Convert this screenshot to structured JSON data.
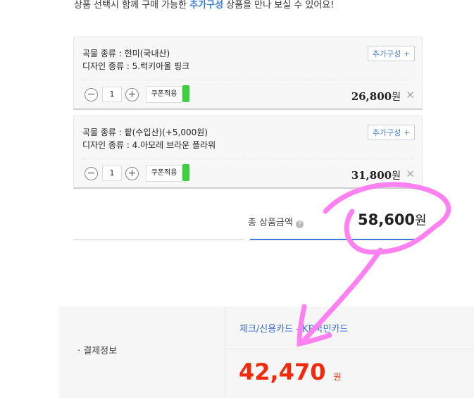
{
  "intro": {
    "before": "상품 선택시 함께 구매 가능한 ",
    "highlight": "추가구성",
    "after": " 상품을 만나 보실 수 있어요!"
  },
  "items": [
    {
      "line1": "곡물 종류 : 현미(국내산)",
      "line2": "디자인 종류 : 5.럭키아울 핑크",
      "add_label": "추가구성 +",
      "qty": "1",
      "coupon": "쿠폰적용",
      "price": "26,800",
      "unit": "원"
    },
    {
      "line1": "곡물 종류 : 팥(수입산)(+5,000원)",
      "line2": "디자인 종류 : 4.아모레 브라운 플라워",
      "add_label": "추가구성 +",
      "qty": "1",
      "coupon": "쿠폰적용",
      "price": "31,800",
      "unit": "원"
    }
  ],
  "total": {
    "label": "총 상품금액",
    "value": "58,600",
    "unit": "원"
  },
  "payment": {
    "label": "· 결제정보",
    "method": "체크/신용카드 - KB국민카드",
    "amount": "42,470",
    "unit": "원"
  },
  "colors": {
    "accent": "#3a7bd5",
    "price_red": "#f02a0a",
    "annotation": "#ff80f0"
  }
}
